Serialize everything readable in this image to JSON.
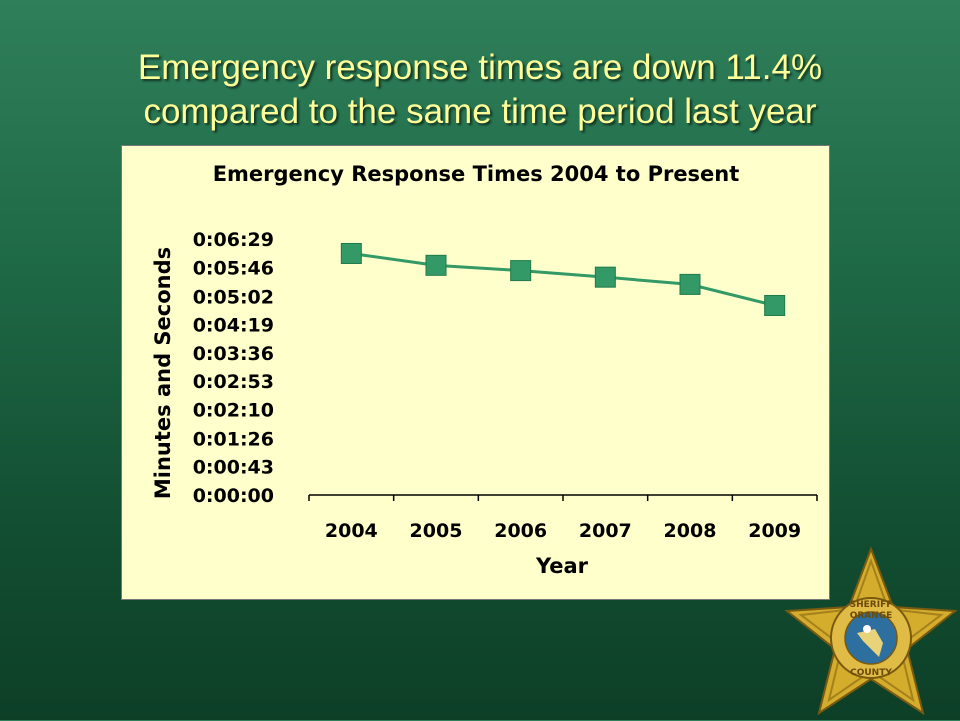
{
  "slide": {
    "title_line1": "Emergency response times are down 11.4%",
    "title_line2": "compared to the same time period last year"
  },
  "chart_data": {
    "type": "line",
    "title": "Emergency Response Times 2004 to Present",
    "xlabel": "Year",
    "ylabel": "Minutes and Seconds",
    "categories": [
      "2004",
      "2005",
      "2006",
      "2007",
      "2008",
      "2009"
    ],
    "y_ticks": [
      "0:00:00",
      "0:00:43",
      "0:01:26",
      "0:02:10",
      "0:02:53",
      "0:03:36",
      "0:04:19",
      "0:05:02",
      "0:05:46",
      "0:06:29"
    ],
    "y_tick_seconds": [
      0,
      43,
      86,
      130,
      173,
      216,
      259,
      302,
      346,
      389
    ],
    "ylim_seconds": [
      0,
      389
    ],
    "series": [
      {
        "values_seconds": [
          367,
          349,
          341,
          331,
          320,
          288
        ]
      }
    ],
    "grid": false,
    "legend": "none",
    "colors": {
      "line": "#339966",
      "marker": "#339966",
      "background": "#ffffcc"
    }
  },
  "badge": {
    "icon": "sheriff-star-badge-icon",
    "text_top": "SHERIFF",
    "text_middle": "ORANGE",
    "text_bottom": "COUNTY",
    "colors": {
      "gold": "#d4ad2c",
      "blue": "#2d6f9e"
    }
  }
}
